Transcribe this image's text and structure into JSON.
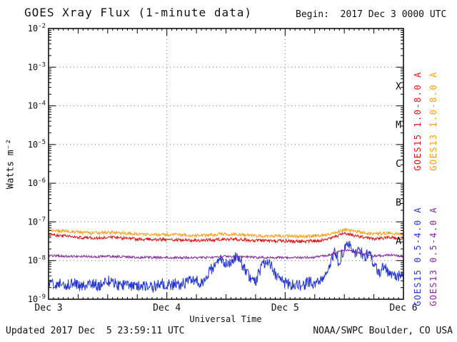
{
  "header": {
    "title": "GOES Xray Flux (1-minute data)",
    "begin_label": "Begin:  2017 Dec 3 0000 UTC"
  },
  "footer": {
    "updated": "Updated 2017 Dec  5 23:59:11 UTC",
    "source": "NOAA/SWPC Boulder, CO USA"
  },
  "axes": {
    "y_label": "Watts m⁻²",
    "x_label": "Universal Time"
  },
  "chart_data": {
    "type": "line",
    "title": "GOES Xray Flux (1-minute data)",
    "xlabel": "Universal Time",
    "ylabel": "Watts m⁻²",
    "y_scale": "log",
    "y_exponent_range": [
      -9,
      -2
    ],
    "x_range_hours": [
      0,
      72
    ],
    "x_start_date": "2017 Dec 3 0000 UTC",
    "grid": "dotted",
    "grid_hours": [
      24,
      48
    ],
    "x_ticks": [
      {
        "hour": 0,
        "label": "Dec 3"
      },
      {
        "hour": 24,
        "label": "Dec 4"
      },
      {
        "hour": 48,
        "label": "Dec 5"
      },
      {
        "hour": 72,
        "label": "Dec 6"
      }
    ],
    "flare_classes": [
      {
        "letter": "A",
        "center_exponent": -7.5
      },
      {
        "letter": "B",
        "center_exponent": -6.5
      },
      {
        "letter": "C",
        "center_exponent": -5.5
      },
      {
        "letter": "M",
        "center_exponent": -4.5
      },
      {
        "letter": "X",
        "center_exponent": -3.5
      }
    ],
    "series": [
      {
        "id": "goes15-long",
        "label": "GOES15 1.0-8.0 A",
        "color": "#dc1414",
        "x_start_hour": 0,
        "x_step_hours": 3,
        "noise_log": 0.04,
        "values": [
          4.6e-08,
          4.3e-08,
          4e-08,
          3.8e-08,
          4e-08,
          3.8e-08,
          3.6e-08,
          3.5e-08,
          3.5e-08,
          3.4e-08,
          3.3e-08,
          3.4e-08,
          3.6e-08,
          3.5e-08,
          3.3e-08,
          3.2e-08,
          3.2e-08,
          3.1e-08,
          3.2e-08,
          3.6e-08,
          5e-08,
          4.2e-08,
          3.6e-08,
          4e-08,
          3.6e-08
        ]
      },
      {
        "id": "goes13-long",
        "label": "GOES13 1.0-8.0 A",
        "color": "#ff9c14",
        "x_start_hour": 0,
        "x_step_hours": 3,
        "noise_log": 0.04,
        "values": [
          6.2e-08,
          5.8e-08,
          5.4e-08,
          5.1e-08,
          5.4e-08,
          5.1e-08,
          4.9e-08,
          4.7e-08,
          4.7e-08,
          4.6e-08,
          4.4e-08,
          4.6e-08,
          4.9e-08,
          4.7e-08,
          4.4e-08,
          4.3e-08,
          4.3e-08,
          4.2e-08,
          4.3e-08,
          4.8e-08,
          6.3e-08,
          5.5e-08,
          4.8e-08,
          5.2e-08,
          4.8e-08
        ]
      },
      {
        "id": "goes15-short",
        "label": "GOES15 0.5-4.0 A",
        "color": "#2336d2",
        "x_start_hour": 0,
        "x_step_hours": 1,
        "noise_log": 0.15,
        "values": [
          2.5e-09,
          2.3e-09,
          2.6e-09,
          2.2e-09,
          2.4e-09,
          2.8e-09,
          2.3e-09,
          2.1e-09,
          2.4e-09,
          2.6e-09,
          2.2e-09,
          2.5e-09,
          3e-09,
          2.6e-09,
          2.4e-09,
          2.2e-09,
          2.5e-09,
          2.3e-09,
          2.1e-09,
          2.4e-09,
          2.2e-09,
          2e-09,
          2.3e-09,
          2.5e-09,
          2.4e-09,
          2.2e-09,
          2.6e-09,
          2.4e-09,
          2.8e-09,
          3.2e-09,
          3e-09,
          2.6e-09,
          3.5e-09,
          6e-09,
          9e-09,
          1.2e-08,
          8e-09,
          1e-08,
          1.2e-08,
          9e-09,
          5e-09,
          3.5e-09,
          3e-09,
          6e-09,
          9.5e-09,
          8e-09,
          4e-09,
          3e-09,
          2.6e-09,
          2.4e-09,
          2.6e-09,
          2.3e-09,
          2.5e-09,
          2.8e-09,
          2.6e-09,
          3e-09,
          3.5e-09,
          8e-09,
          1.6e-08,
          9e-09,
          2.2e-08,
          2.6e-08,
          1.6e-08,
          2e-08,
          1.2e-08,
          1.5e-08,
          8e-09,
          5e-09,
          6.5e-09,
          5e-09,
          4.5e-09,
          4e-09,
          3.8e-09
        ]
      },
      {
        "id": "goes13-short",
        "label": "GOES13 0.5-4.0 A",
        "color": "#8428a0",
        "x_start_hour": 0,
        "x_step_hours": 3,
        "noise_log": 0.03,
        "values": [
          1.35e-08,
          1.3e-08,
          1.28e-08,
          1.25e-08,
          1.28e-08,
          1.25e-08,
          1.22e-08,
          1.2e-08,
          1.2e-08,
          1.2e-08,
          1.18e-08,
          1.2e-08,
          1.3e-08,
          1.25e-08,
          1.2e-08,
          1.2e-08,
          1.2e-08,
          1.18e-08,
          1.22e-08,
          1.4e-08,
          1.9e-08,
          1.6e-08,
          1.3e-08,
          1.4e-08,
          1.3e-08
        ]
      }
    ]
  }
}
